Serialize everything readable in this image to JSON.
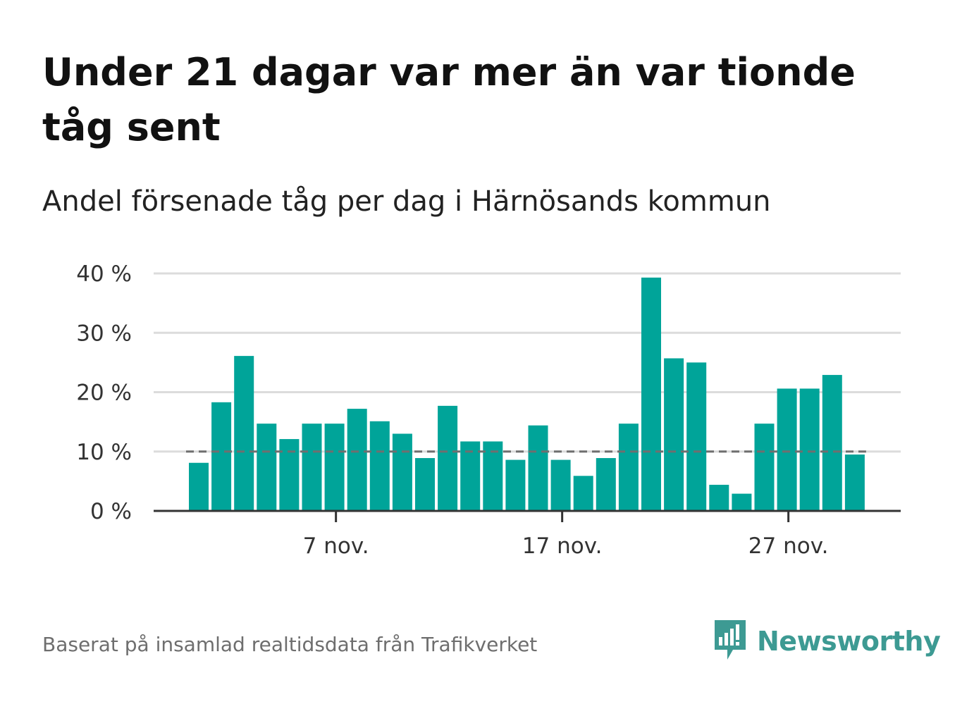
{
  "title": "Under 21 dagar var mer än var tionde tåg sent",
  "subtitle": "Andel försenade tåg per dag i Härnösands kommun",
  "source": "Baserat på insamlad realtidsdata från Trafikverket",
  "brand": {
    "name": "Newsworthy",
    "icon": "newsworthy-logo-icon"
  },
  "colors": {
    "bar": "#00a499",
    "reference_line": "#6f6f6f",
    "grid": "#dcdcdc",
    "axis": "#333333",
    "brand": "#3d9a93"
  },
  "chart_data": {
    "type": "bar",
    "x_tick_labels": [
      "7 nov.",
      "17 nov.",
      "27 nov."
    ],
    "y_tick_labels": [
      "0 %",
      "10 %",
      "20 %",
      "30 %",
      "40 %"
    ],
    "y_ticks": [
      0,
      10,
      20,
      30,
      40
    ],
    "ylim": [
      0,
      40
    ],
    "x": [
      "1 nov.",
      "2 nov.",
      "3 nov.",
      "4 nov.",
      "5 nov.",
      "6 nov.",
      "7 nov.",
      "8 nov.",
      "9 nov.",
      "10 nov.",
      "11 nov.",
      "12 nov.",
      "13 nov.",
      "14 nov.",
      "15 nov.",
      "16 nov.",
      "17 nov.",
      "18 nov.",
      "19 nov.",
      "20 nov.",
      "21 nov.",
      "22 nov.",
      "23 nov.",
      "24 nov.",
      "25 nov.",
      "26 nov.",
      "27 nov.",
      "28 nov.",
      "29 nov.",
      "30 nov."
    ],
    "values": [
      8.1,
      18.3,
      26.1,
      14.7,
      12.1,
      14.7,
      14.7,
      17.2,
      15.1,
      13.0,
      8.9,
      17.7,
      11.7,
      11.7,
      8.6,
      14.4,
      8.6,
      5.9,
      8.9,
      14.7,
      39.3,
      25.7,
      25.0,
      4.4,
      2.9,
      14.7,
      20.6,
      20.6,
      22.9,
      9.5
    ],
    "reference_line": 10,
    "grid": true,
    "legend": "none"
  }
}
